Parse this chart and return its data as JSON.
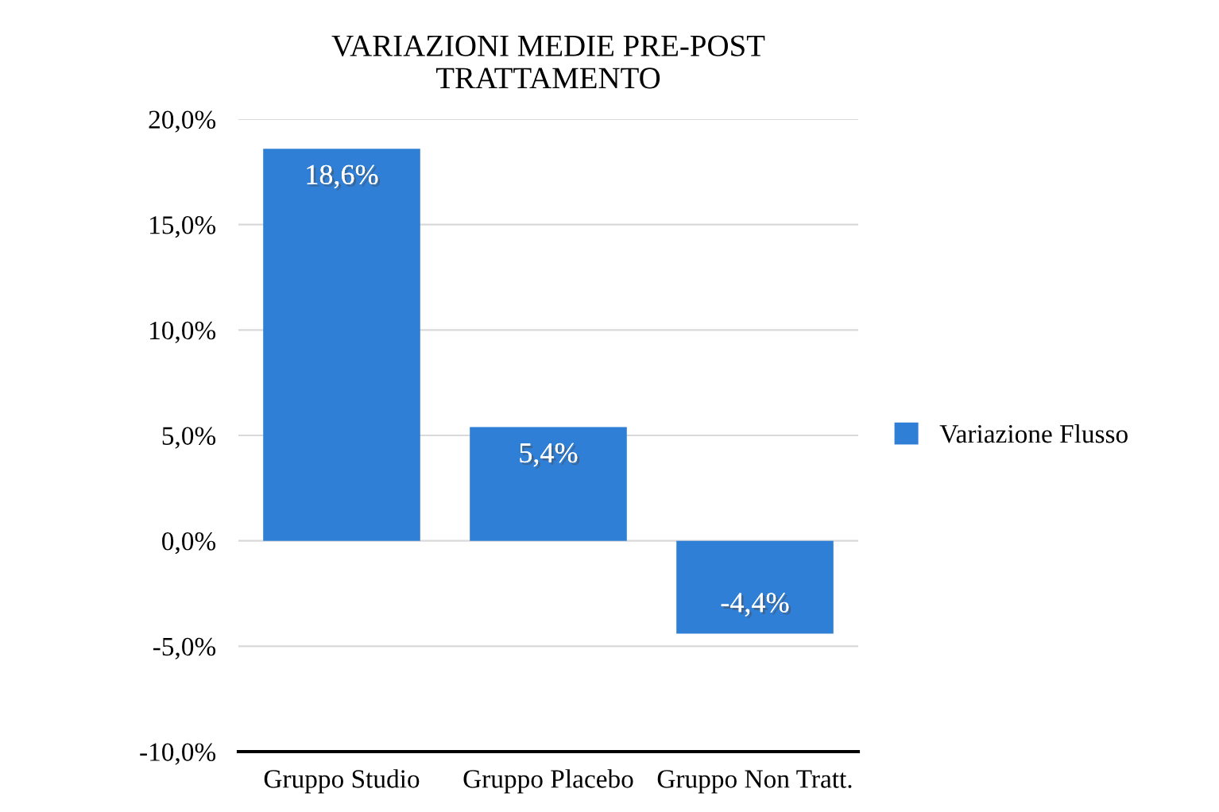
{
  "chart_data": {
    "type": "bar",
    "title": "VARIAZIONI MEDIE PRE-POST\nTRATTAMENTO",
    "categories": [
      "Gruppo Studio",
      "Gruppo Placebo",
      "Gruppo Non Tratt."
    ],
    "series": [
      {
        "name": "Variazione Flusso",
        "color": "#2f7fd6",
        "values": [
          18.6,
          5.4,
          -4.4
        ],
        "value_labels": [
          "18,6%",
          "5,4%",
          "-4,4%"
        ]
      }
    ],
    "ylim": [
      -10,
      20
    ],
    "yticks": [
      {
        "value": -10,
        "label": "-10,0%"
      },
      {
        "value": -5,
        "label": "-5,0%"
      },
      {
        "value": 0,
        "label": "0,0%"
      },
      {
        "value": 5,
        "label": "5,0%"
      },
      {
        "value": 10,
        "label": "10,0%"
      },
      {
        "value": 15,
        "label": "15,0%"
      },
      {
        "value": 20,
        "label": "20,0%"
      }
    ],
    "grid": "y",
    "legend": "right"
  }
}
